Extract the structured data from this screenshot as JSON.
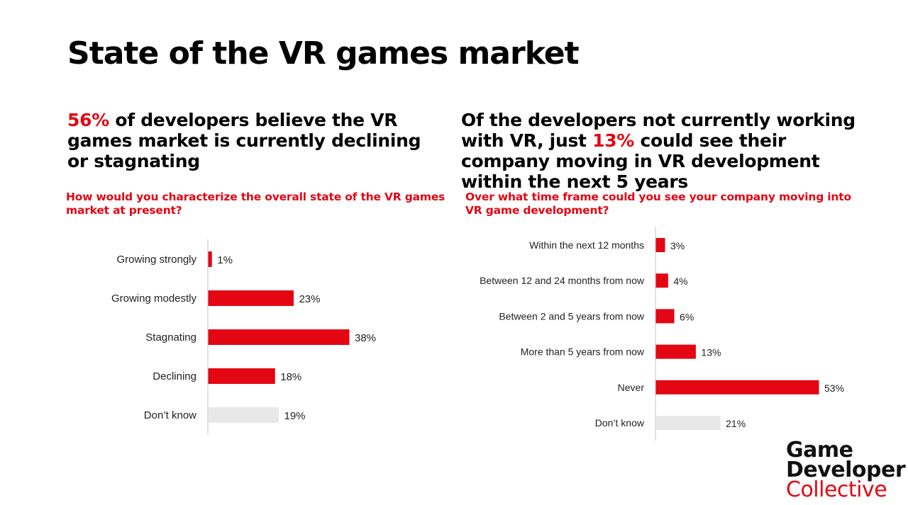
{
  "title": "State of the VR games market",
  "left": {
    "headline_highlight": "56%",
    "headline_rest": " of developers believe the VR games market is currently declining or stagnating",
    "question": "How would you characterize the overall state of the VR games market at present?"
  },
  "right": {
    "headline_pre": "Of the developers not currently working with VR, just ",
    "headline_highlight": "13%",
    "headline_post": " could see their company moving in VR development within the next 5 years",
    "question": "Over what time frame could you see your company moving into VR game development?"
  },
  "logo": {
    "line1": "Game",
    "line2": "Developer",
    "line3": "Collective"
  },
  "colors": {
    "accent": "#e30613",
    "neutral": "#e8e8e8",
    "axis": "#d9d9d9"
  },
  "chart_data": [
    {
      "type": "bar",
      "orientation": "horizontal",
      "categories": [
        "Growing strongly",
        "Growing modestly",
        "Stagnating",
        "Declining",
        "Don’t know"
      ],
      "values": [
        1,
        23,
        38,
        18,
        19
      ],
      "labels": [
        "1%",
        "23%",
        "38%",
        "18%",
        "19%"
      ],
      "bar_colors": [
        "#e30613",
        "#e30613",
        "#e30613",
        "#e30613",
        "#e8e8e8"
      ],
      "xlim": [
        0,
        38
      ],
      "grid": false
    },
    {
      "type": "bar",
      "orientation": "horizontal",
      "categories": [
        "Within the next 12 months",
        "Between 12 and 24 months from now",
        "Between 2 and 5 years from now",
        "More than 5 years from now",
        "Never",
        "Don’t know"
      ],
      "values": [
        3,
        4,
        6,
        13,
        53,
        21
      ],
      "labels": [
        "3%",
        "4%",
        "6%",
        "13%",
        "53%",
        "21%"
      ],
      "bar_colors": [
        "#e30613",
        "#e30613",
        "#e30613",
        "#e30613",
        "#e30613",
        "#e8e8e8"
      ],
      "xlim": [
        0,
        53
      ],
      "grid": false
    }
  ]
}
